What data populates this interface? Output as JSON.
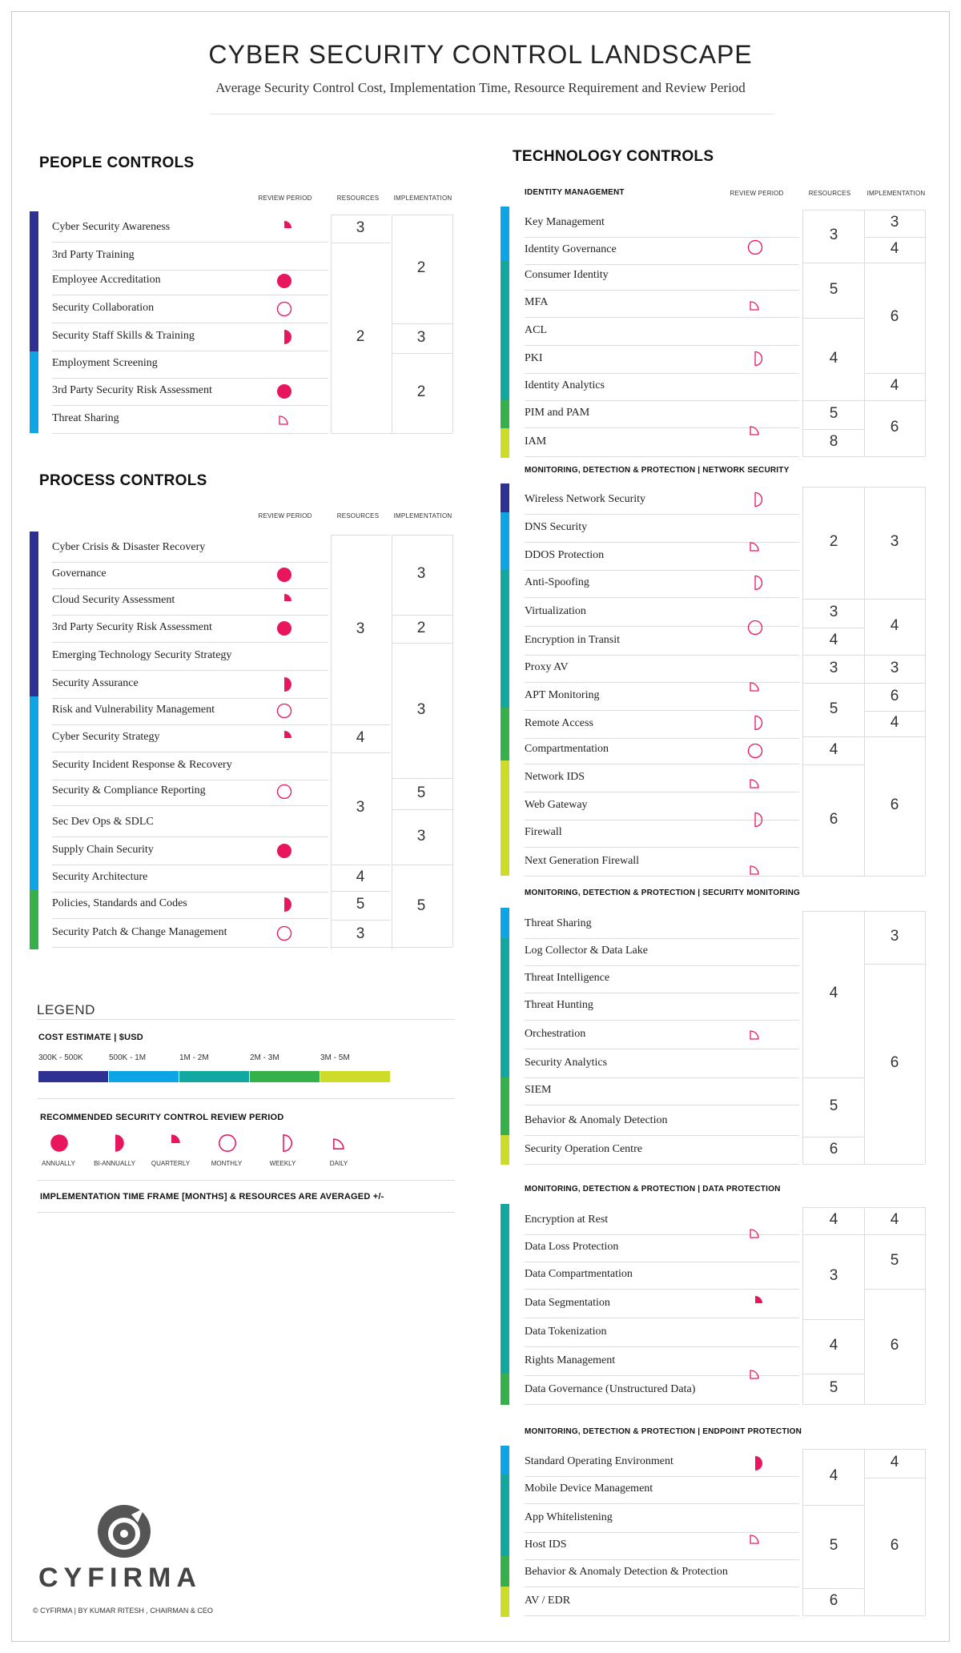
{
  "header": {
    "title": "CYBER SECURITY CONTROL LANDSCAPE",
    "subtitle": "Average Security Control Cost, Implementation Time, Resource Requirement and Review Period"
  },
  "colors": {
    "c1": "#2e3192",
    "c2": "#0ea5e6",
    "c3": "#12a8a0",
    "c4": "#35b04a",
    "c5": "#cddc28",
    "review": "#e8175d"
  },
  "columns": {
    "review": "REVIEW PERIOD",
    "resources": "RESOURCES",
    "implementation": "IMPLEMENTATION"
  },
  "people": {
    "title": "PEOPLE CONTROLS",
    "rows": [
      {
        "name": "Cyber Security Awareness",
        "review": "quarterly"
      },
      {
        "name": "3rd Party Training",
        "review": ""
      },
      {
        "name": "Employee Accreditation",
        "review": "annually"
      },
      {
        "name": "Security Collaboration",
        "review": "monthly"
      },
      {
        "name": "Security Staff Skills & Training",
        "review": "bi-annually"
      },
      {
        "name": "Employment Screening",
        "review": ""
      },
      {
        "name": "3rd Party Security Risk Assessment",
        "review": "annually"
      },
      {
        "name": "Threat Sharing",
        "review": "daily"
      }
    ],
    "resources": [
      "3",
      "2"
    ],
    "implementation": [
      "2",
      "3",
      "2"
    ]
  },
  "process": {
    "title": "PROCESS CONTROLS",
    "rows": [
      {
        "name": "Cyber Crisis & Disaster Recovery",
        "review": ""
      },
      {
        "name": "Governance",
        "review": "annually"
      },
      {
        "name": "Cloud Security Assessment",
        "review": "quarterly"
      },
      {
        "name": "3rd Party Security Risk Assessment",
        "review": "annually"
      },
      {
        "name": "Emerging Technology Security Strategy",
        "review": ""
      },
      {
        "name": "Security Assurance",
        "review": "bi-annually"
      },
      {
        "name": "Risk and Vulnerability Management",
        "review": "monthly"
      },
      {
        "name": "Cyber Security Strategy",
        "review": "quarterly"
      },
      {
        "name": "Security Incident Response & Recovery",
        "review": ""
      },
      {
        "name": "Security & Compliance Reporting",
        "review": "monthly"
      },
      {
        "name": "Sec Dev Ops & SDLC",
        "review": ""
      },
      {
        "name": "Supply Chain Security",
        "review": "annually"
      },
      {
        "name": "Security Architecture",
        "review": ""
      },
      {
        "name": "Policies, Standards and Codes",
        "review": "bi-annually"
      },
      {
        "name": "Security Patch & Change Management",
        "review": "monthly"
      }
    ],
    "resources": [
      "3",
      "4",
      "3",
      "4",
      "5",
      "3"
    ],
    "implementation": [
      "3",
      "2",
      "3",
      "5",
      "3",
      "5"
    ]
  },
  "technology": {
    "title": "TECHNOLOGY CONTROLS",
    "identity": {
      "title": "IDENTITY MANAGEMENT",
      "rows": [
        "Key Management",
        "Identity Governance",
        "Consumer Identity",
        "MFA",
        "ACL",
        "PKI",
        "Identity Analytics",
        "PIM and PAM",
        "IAM"
      ],
      "resources": [
        "3",
        "5",
        "4",
        "5",
        "8"
      ],
      "implementation": [
        "3",
        "4",
        "6",
        "4",
        "6"
      ]
    },
    "network": {
      "title": "MONITORING, DETECTION & PROTECTION  |  NETWORK SECURITY",
      "rows": [
        "Wireless Network Security",
        "DNS Security",
        "DDOS Protection",
        "Anti-Spoofing",
        "Virtualization",
        "Encryption in Transit",
        "Proxy AV",
        "APT Monitoring",
        "Remote Access",
        "Compartmentation",
        "Network IDS",
        "Web Gateway",
        "Firewall",
        "Next Generation Firewall"
      ],
      "resources": [
        "2",
        "3",
        "4",
        "3",
        "5",
        "4",
        "6"
      ],
      "implementation": [
        "3",
        "4",
        "3",
        "6",
        "4",
        "6"
      ]
    },
    "monitoring": {
      "title": "MONITORING, DETECTION & PROTECTION  |  SECURITY MONITORING",
      "rows": [
        "Threat Sharing",
        "Log Collector & Data Lake",
        "Threat Intelligence",
        "Threat Hunting",
        "Orchestration",
        "Security Analytics",
        "SIEM",
        "Behavior & Anomaly Detection",
        "Security Operation Centre"
      ],
      "resources": [
        "4",
        "5",
        "6"
      ],
      "implementation": [
        "3",
        "6"
      ]
    },
    "data": {
      "title": "MONITORING, DETECTION & PROTECTION  |  DATA PROTECTION",
      "rows": [
        "Encryption at Rest",
        "Data Loss Protection",
        "Data Compartmentation",
        "Data Segmentation",
        "Data Tokenization",
        "Rights Management",
        "Data Governance (Unstructured Data)"
      ],
      "resources": [
        "4",
        "3",
        "4",
        "5"
      ],
      "implementation": [
        "4",
        "5",
        "6"
      ]
    },
    "endpoint": {
      "title": "MONITORING, DETECTION & PROTECTION  |  ENDPOINT PROTECTION",
      "rows": [
        "Standard Operating Environment",
        "Mobile Device Management",
        "App Whitelistening",
        "Host IDS",
        "Behavior & Anomaly Detection & Protection",
        "AV / EDR"
      ],
      "resources": [
        "4",
        "5",
        "6"
      ],
      "implementation": [
        "4",
        "6"
      ]
    }
  },
  "legend": {
    "heading": "LEGEND",
    "cost_title": "COST ESTIMATE | $USD",
    "cost_ranges": [
      "300K - 500K",
      "500K - 1M",
      "1M - 2M",
      "2M - 3M",
      "3M - 5M"
    ],
    "review_title": "RECOMMENDED SECURITY CONTROL REVIEW PERIOD",
    "review_periods": [
      "ANNUALLY",
      "BI-ANNUALLY",
      "QUARTERLY",
      "MONTHLY",
      "WEEKLY",
      "DAILY"
    ],
    "note": "IMPLEMENTATION TIME FRAME [MONTHS] & RESOURCES ARE AVERAGED +/-"
  },
  "footer": {
    "logo": "CYFIRMA",
    "credit": "© CYFIRMA | BY KUMAR RITESH , CHAIRMAN & CEO"
  }
}
